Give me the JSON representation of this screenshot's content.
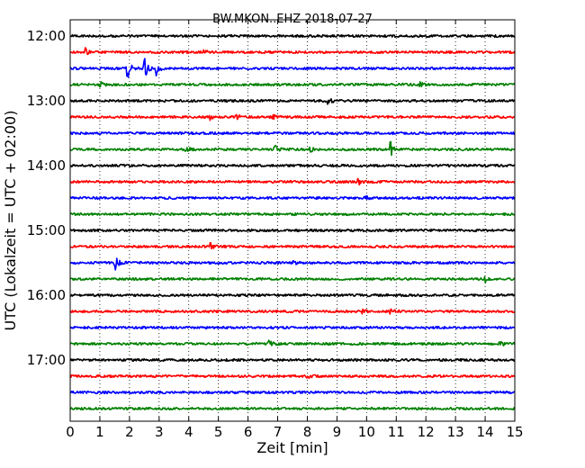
{
  "chart_data": {
    "type": "line",
    "title": "BW.MKON..EHZ 2018-07-27",
    "xlabel": "Zeit  [min]",
    "ylabel": "UTC (Lokalzeit = UTC + 02:00)",
    "xlim": [
      0,
      15
    ],
    "x_ticks": [
      "0",
      "1",
      "2",
      "3",
      "4",
      "5",
      "6",
      "7",
      "8",
      "9",
      "10",
      "11",
      "12",
      "13",
      "14",
      "15"
    ],
    "y_tick_labels": [
      "12:00",
      "13:00",
      "14:00",
      "15:00",
      "16:00",
      "17:00"
    ],
    "trace_interval_min": 15,
    "grid": "vertical dotted lines at each minute",
    "colors": [
      "#000000",
      "#ff0000",
      "#0000ff",
      "#008000"
    ],
    "traces": [
      {
        "start": "12:00",
        "color": "#000000",
        "events": []
      },
      {
        "start": "12:15",
        "color": "#ff0000",
        "events": [
          {
            "t": 0.5,
            "amp": 5
          },
          {
            "t": 4.5,
            "amp": 3
          }
        ]
      },
      {
        "start": "12:30",
        "color": "#0000ff",
        "events": [
          {
            "t": 1.9,
            "amp": 22
          },
          {
            "t": 2.5,
            "amp": 14
          },
          {
            "t": 2.9,
            "amp": 7
          }
        ]
      },
      {
        "start": "12:45",
        "color": "#008000",
        "events": [
          {
            "t": 1.0,
            "amp": 3
          },
          {
            "t": 11.8,
            "amp": 3
          }
        ]
      },
      {
        "start": "13:00",
        "color": "#000000",
        "events": [
          {
            "t": 8.7,
            "amp": 4
          }
        ]
      },
      {
        "start": "13:15",
        "color": "#ff0000",
        "events": [
          {
            "t": 4.7,
            "amp": 3
          },
          {
            "t": 5.6,
            "amp": 4
          },
          {
            "t": 6.8,
            "amp": 6
          }
        ]
      },
      {
        "start": "13:30",
        "color": "#0000ff",
        "events": []
      },
      {
        "start": "13:45",
        "color": "#008000",
        "events": [
          {
            "t": 3.9,
            "amp": 4
          },
          {
            "t": 6.9,
            "amp": 5
          },
          {
            "t": 8.1,
            "amp": 3
          },
          {
            "t": 10.8,
            "amp": 9
          }
        ]
      },
      {
        "start": "14:00",
        "color": "#000000",
        "events": []
      },
      {
        "start": "14:15",
        "color": "#ff0000",
        "events": [
          {
            "t": 9.7,
            "amp": 4
          }
        ]
      },
      {
        "start": "14:30",
        "color": "#0000ff",
        "events": [
          {
            "t": 9.9,
            "amp": 4
          }
        ]
      },
      {
        "start": "14:45",
        "color": "#008000",
        "events": []
      },
      {
        "start": "15:00",
        "color": "#000000",
        "events": []
      },
      {
        "start": "15:15",
        "color": "#ff0000",
        "events": [
          {
            "t": 4.7,
            "amp": 5
          }
        ]
      },
      {
        "start": "15:30",
        "color": "#0000ff",
        "events": [
          {
            "t": 1.5,
            "amp": 9
          },
          {
            "t": 7.5,
            "amp": 3
          }
        ]
      },
      {
        "start": "15:45",
        "color": "#008000",
        "events": [
          {
            "t": 14.0,
            "amp": 4
          }
        ]
      },
      {
        "start": "16:00",
        "color": "#000000",
        "events": []
      },
      {
        "start": "16:15",
        "color": "#ff0000",
        "events": [
          {
            "t": 9.8,
            "amp": 3
          },
          {
            "t": 10.8,
            "amp": 3
          }
        ]
      },
      {
        "start": "16:30",
        "color": "#0000ff",
        "events": []
      },
      {
        "start": "16:45",
        "color": "#008000",
        "events": [
          {
            "t": 6.7,
            "amp": 4
          },
          {
            "t": 14.5,
            "amp": 3
          }
        ]
      },
      {
        "start": "17:00",
        "color": "#000000",
        "events": []
      },
      {
        "start": "17:15",
        "color": "#ff0000",
        "events": [
          {
            "t": 8.0,
            "amp": 3
          }
        ]
      },
      {
        "start": "17:30",
        "color": "#0000ff",
        "events": []
      },
      {
        "start": "17:45",
        "color": "#008000",
        "events": []
      }
    ]
  }
}
